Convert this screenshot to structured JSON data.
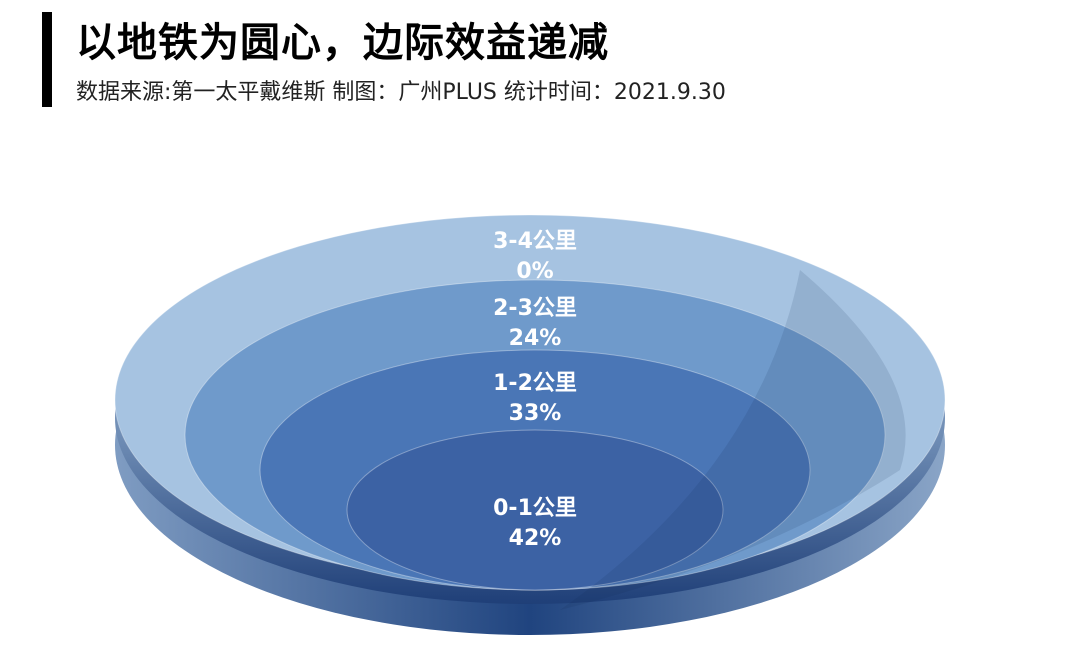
{
  "header": {
    "title": "以地铁为圆心，边际效益递减",
    "subtitle": "数据来源:第一太平戴维斯   制图：广州PLUS   统计时间：2021.9.30"
  },
  "chart_data": {
    "type": "pie",
    "style": "concentric-rings",
    "categories": [
      "0-1公里",
      "1-2公里",
      "2-3公里",
      "3-4公里"
    ],
    "values": [
      42,
      33,
      24,
      0
    ],
    "value_labels": [
      "42%",
      "33%",
      "24%",
      "0%"
    ],
    "unit": "%",
    "colors": [
      "#3c62a4",
      "#4a76b6",
      "#6f9acb",
      "#a6c3e1"
    ],
    "legend": "none"
  }
}
